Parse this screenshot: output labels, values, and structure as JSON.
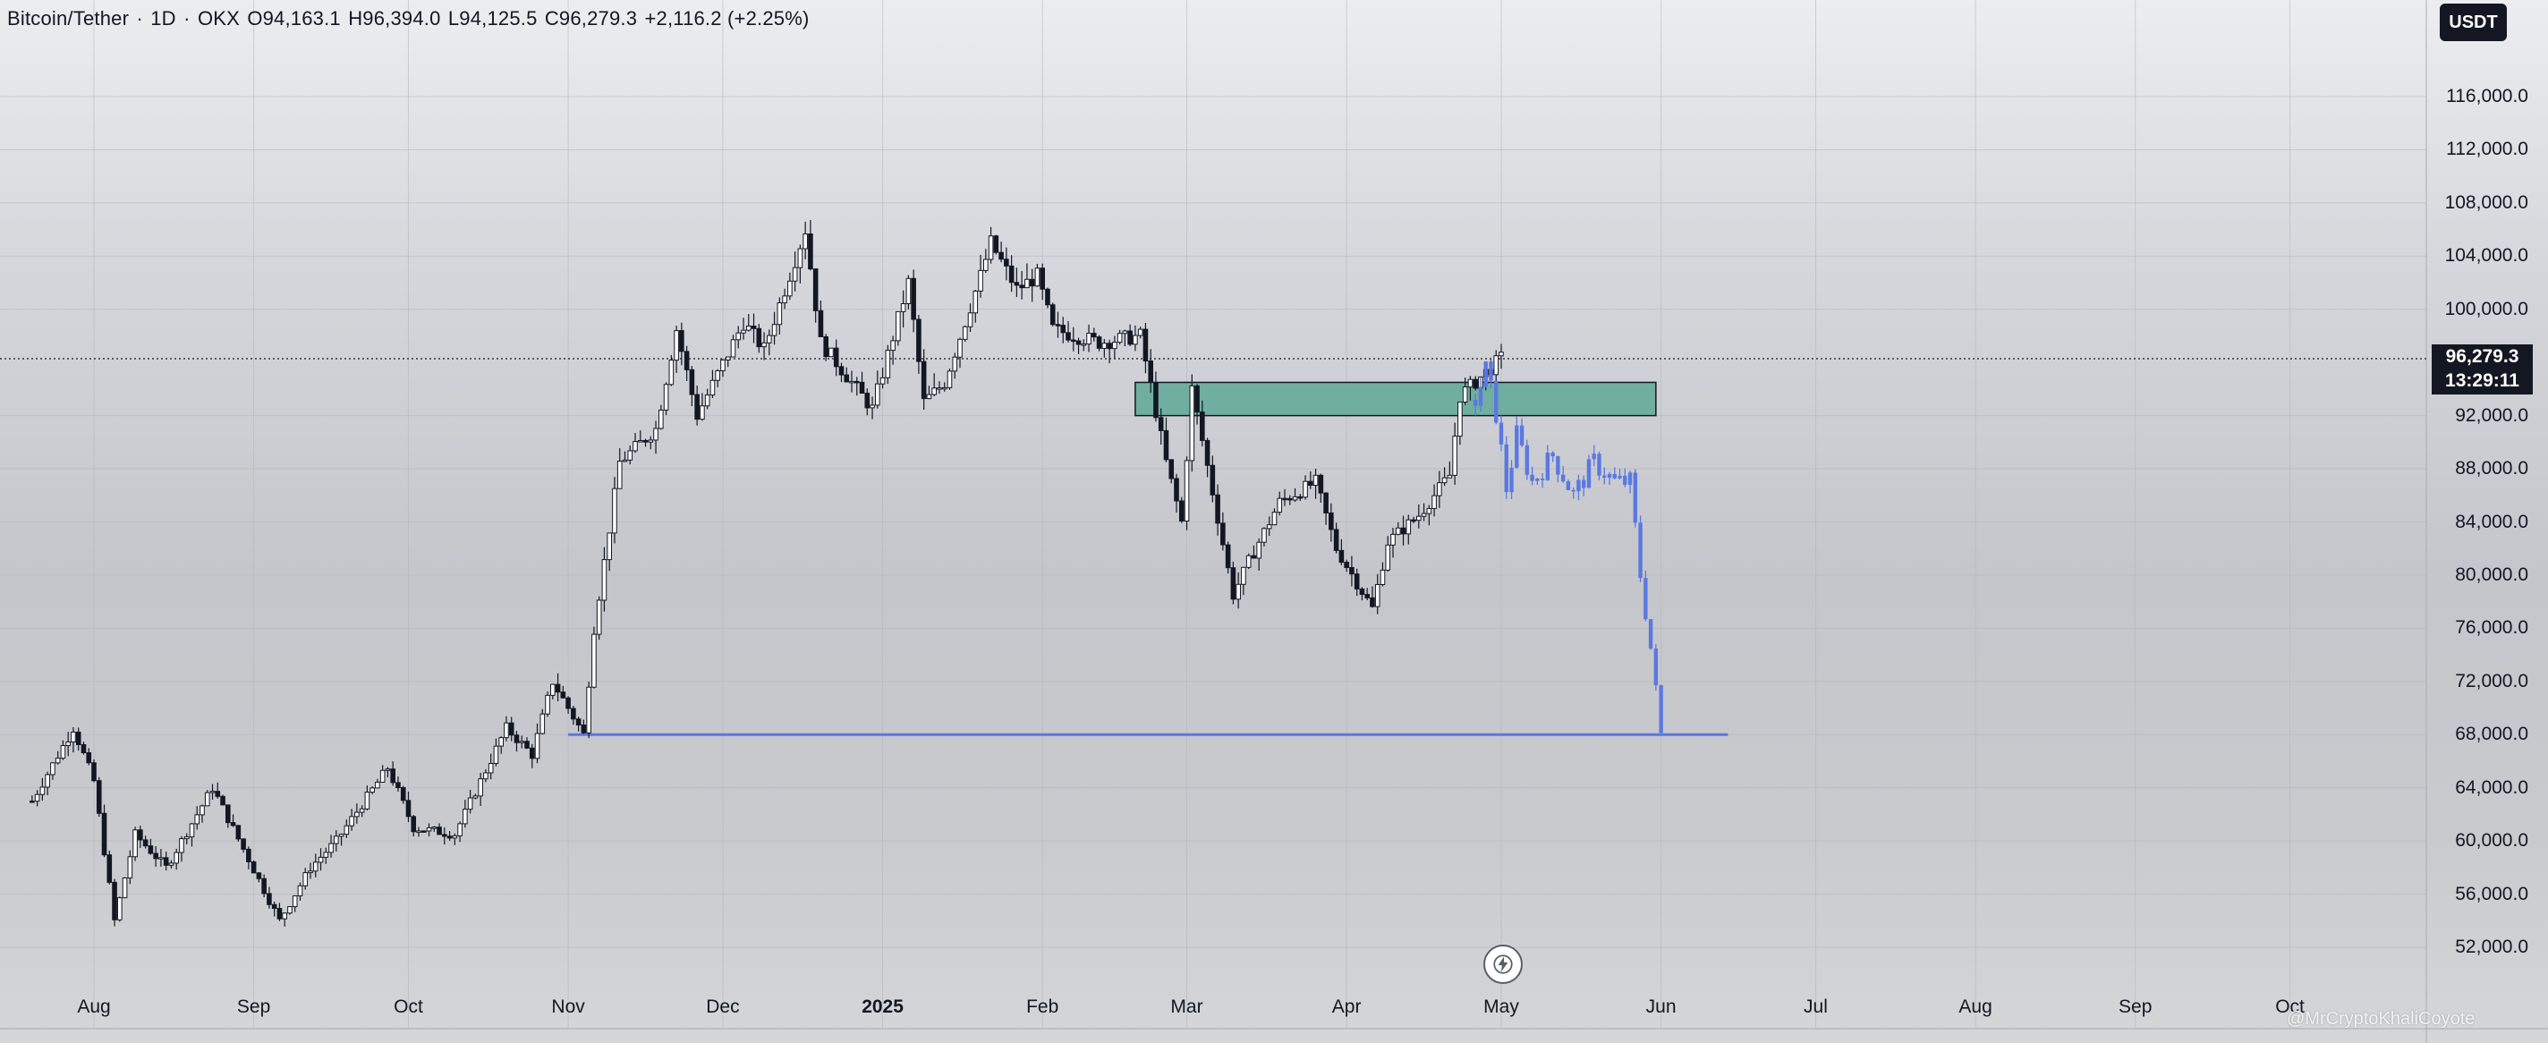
{
  "legend": {
    "symbol": "Bitcoin/Tether",
    "interval": "1D",
    "exchange": "OKX",
    "open": "O94,163.1",
    "high": "H96,394.0",
    "low": "L94,125.5",
    "close": "C96,279.3",
    "change": "+2,116.2 (+2.25%)",
    "separator": "·"
  },
  "currency_badge": "USDT",
  "last_price": {
    "price": "96,279.3",
    "countdown": "13:29:11"
  },
  "watermark": "@MrCryptoKhaliCoyote",
  "colors": {
    "candle": "#131722",
    "projection": "#5b78e0",
    "support_line": "#5b78e0",
    "zone_fill": "#5fa996",
    "zone_border": "#131722"
  },
  "icons": [
    "bolt-icon"
  ],
  "chart_data": {
    "type": "candlestick",
    "y_axis": {
      "min": 48000,
      "max": 120000,
      "ticks": [
        {
          "value": 116000,
          "label": "116,000.0"
        },
        {
          "value": 112000,
          "label": "112,000.0"
        },
        {
          "value": 108000,
          "label": "108,000.0"
        },
        {
          "value": 104000,
          "label": "104,000.0"
        },
        {
          "value": 100000,
          "label": "100,000.0"
        },
        {
          "value": 92000,
          "label": "92,000.0"
        },
        {
          "value": 88000,
          "label": "88,000.0"
        },
        {
          "value": 84000,
          "label": "84,000.0"
        },
        {
          "value": 80000,
          "label": "80,000.0"
        },
        {
          "value": 76000,
          "label": "76,000.0"
        },
        {
          "value": 72000,
          "label": "72,000.0"
        },
        {
          "value": 68000,
          "label": "68,000.0"
        },
        {
          "value": 64000,
          "label": "64,000.0"
        },
        {
          "value": 60000,
          "label": "60,000.0"
        },
        {
          "value": 56000,
          "label": "56,000.0"
        },
        {
          "value": 52000,
          "label": "52,000.0"
        }
      ]
    },
    "x_axis": {
      "start_date": "2024-07-20",
      "end_date": "2025-10-05",
      "ticks": [
        {
          "date": "2024-08-01",
          "label": "Aug",
          "bold": false
        },
        {
          "date": "2024-09-01",
          "label": "Sep",
          "bold": false
        },
        {
          "date": "2024-10-01",
          "label": "Oct",
          "bold": false
        },
        {
          "date": "2024-11-01",
          "label": "Nov",
          "bold": false
        },
        {
          "date": "2024-12-01",
          "label": "Dec",
          "bold": false
        },
        {
          "date": "2025-01-01",
          "label": "2025",
          "bold": true
        },
        {
          "date": "2025-02-01",
          "label": "Feb",
          "bold": false
        },
        {
          "date": "2025-03-01",
          "label": "Mar",
          "bold": false
        },
        {
          "date": "2025-04-01",
          "label": "Apr",
          "bold": false
        },
        {
          "date": "2025-05-01",
          "label": "May",
          "bold": false
        },
        {
          "date": "2025-06-01",
          "label": "Jun",
          "bold": false
        },
        {
          "date": "2025-07-01",
          "label": "Jul",
          "bold": false
        },
        {
          "date": "2025-08-01",
          "label": "Aug",
          "bold": false
        },
        {
          "date": "2025-09-01",
          "label": "Sep",
          "bold": false
        },
        {
          "date": "2025-10-01",
          "label": "Oct",
          "bold": false
        }
      ]
    },
    "price_path": [
      [
        "2024-07-20",
        63000
      ],
      [
        "2024-07-28",
        68500
      ],
      [
        "2024-08-01",
        64500
      ],
      [
        "2024-08-05",
        54000
      ],
      [
        "2024-08-09",
        60500
      ],
      [
        "2024-08-15",
        58000
      ],
      [
        "2024-08-24",
        64000
      ],
      [
        "2024-09-06",
        54000
      ],
      [
        "2024-09-12",
        58000
      ],
      [
        "2024-09-17",
        60000
      ],
      [
        "2024-09-27",
        65500
      ],
      [
        "2024-10-02",
        61000
      ],
      [
        "2024-10-10",
        60500
      ],
      [
        "2024-10-20",
        68500
      ],
      [
        "2024-10-25",
        66500
      ],
      [
        "2024-10-29",
        72000
      ],
      [
        "2024-11-04",
        68000
      ],
      [
        "2024-11-06",
        76000
      ],
      [
        "2024-11-11",
        88500
      ],
      [
        "2024-11-18",
        91000
      ],
      [
        "2024-11-22",
        98500
      ],
      [
        "2024-11-26",
        92000
      ],
      [
        "2024-12-05",
        99000
      ],
      [
        "2024-12-09",
        97000
      ],
      [
        "2024-12-17",
        106000
      ],
      [
        "2024-12-20",
        97500
      ],
      [
        "2024-12-30",
        92500
      ],
      [
        "2025-01-06",
        102000
      ],
      [
        "2025-01-09",
        93000
      ],
      [
        "2025-01-13",
        94500
      ],
      [
        "2025-01-20",
        102500
      ],
      [
        "2025-01-22",
        105000
      ],
      [
        "2025-01-27",
        101500
      ],
      [
        "2025-01-31",
        102500
      ],
      [
        "2025-02-03",
        98500
      ],
      [
        "2025-02-12",
        97500
      ],
      [
        "2025-02-20",
        98000
      ],
      [
        "2025-02-25",
        88500
      ],
      [
        "2025-02-28",
        84000
      ],
      [
        "2025-03-02",
        94000
      ],
      [
        "2025-03-10",
        78500
      ],
      [
        "2025-03-13",
        81000
      ],
      [
        "2025-03-19",
        85500
      ],
      [
        "2025-03-26",
        87000
      ],
      [
        "2025-03-30",
        82000
      ],
      [
        "2025-04-06",
        77500
      ],
      [
        "2025-04-09",
        82500
      ],
      [
        "2025-04-15",
        84500
      ],
      [
        "2025-04-21",
        87500
      ],
      [
        "2025-04-23",
        93500
      ],
      [
        "2025-05-01",
        96300
      ]
    ],
    "projection_path": [
      [
        "2025-04-26",
        93200
      ],
      [
        "2025-04-28",
        95400
      ],
      [
        "2025-04-30",
        92200
      ],
      [
        "2025-05-02",
        86500
      ],
      [
        "2025-05-04",
        90500
      ],
      [
        "2025-05-07",
        87000
      ],
      [
        "2025-05-11",
        89000
      ],
      [
        "2025-05-15",
        86000
      ],
      [
        "2025-05-19",
        88500
      ],
      [
        "2025-05-23",
        87000
      ],
      [
        "2025-05-26",
        87000
      ],
      [
        "2025-05-28",
        80000
      ],
      [
        "2025-05-30",
        74500
      ],
      [
        "2025-06-01",
        68000
      ]
    ],
    "resistance_zone": {
      "start": "2025-02-19",
      "end": "2025-05-31",
      "low": 92000,
      "high": 94500
    },
    "support_line": {
      "start": "2024-11-01",
      "end": "2025-06-14",
      "value": 68000
    },
    "last_price_line": 96279.3,
    "grid": true
  }
}
